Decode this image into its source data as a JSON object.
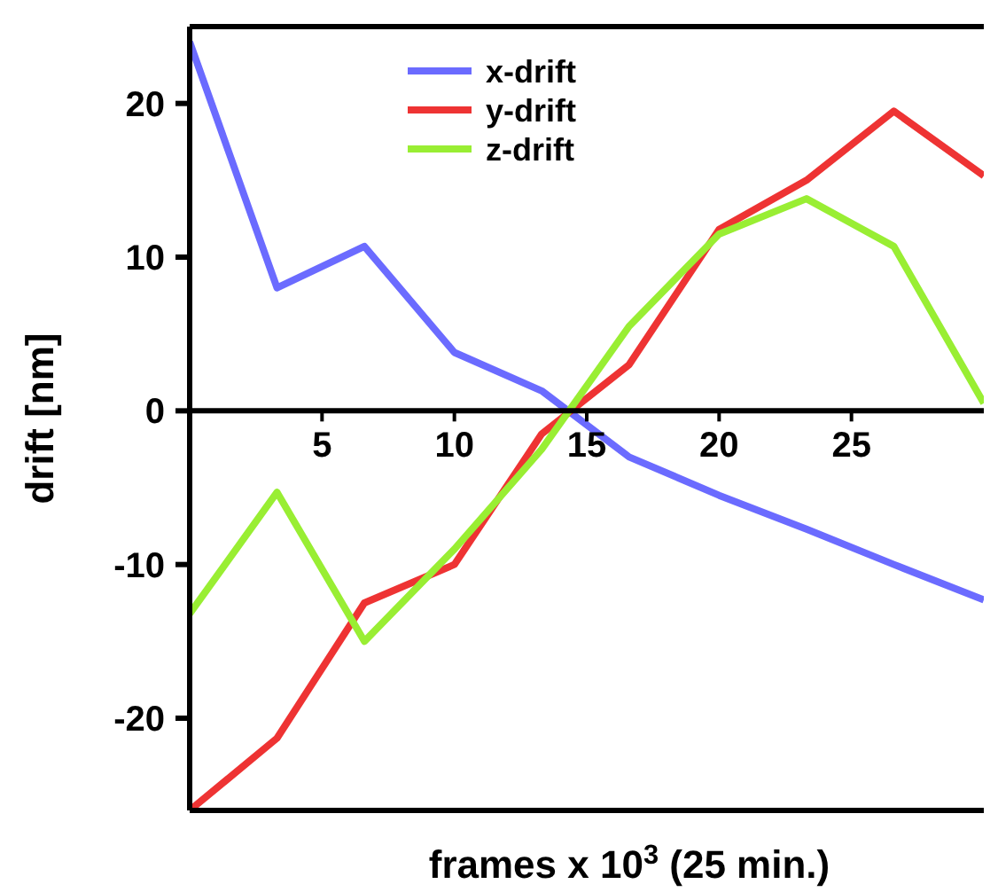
{
  "chart_data": {
    "type": "line",
    "xlabel": "frames x 10$^{3}$ (25 min.)",
    "ylabel": "drift [nm]",
    "xlim": [
      0,
      30
    ],
    "ylim": [
      -26,
      25
    ],
    "xticks": [
      5,
      10,
      15,
      20,
      25
    ],
    "yticks": [
      -20,
      -10,
      0,
      10,
      20
    ],
    "grid": false,
    "legend": "top",
    "line_style": "solid",
    "marker": "none",
    "series": [
      {
        "name": "x-drift",
        "color": "#6b6bff",
        "x": [
          0,
          3.3,
          6.6,
          10,
          13.3,
          16.6,
          20,
          23.3,
          26.6,
          30
        ],
        "values": [
          24,
          8,
          10.7,
          3.8,
          1.3,
          -3,
          -5.5,
          -7.7,
          -10,
          -12.3
        ]
      },
      {
        "name": "y-drift",
        "color": "#ee3333",
        "x": [
          0,
          3.3,
          6.6,
          10,
          13.3,
          16.6,
          20,
          23.3,
          26.6,
          30
        ],
        "values": [
          -26,
          -21.3,
          -12.5,
          -10,
          -1.5,
          3,
          11.8,
          15,
          19.5,
          15.3
        ]
      },
      {
        "name": "z-drift",
        "color": "#99ee33",
        "x": [
          0,
          3.3,
          6.6,
          10,
          13.3,
          16.6,
          20,
          23.3,
          26.6,
          30
        ],
        "values": [
          -13.2,
          -5.3,
          -15,
          -9,
          -2.5,
          5.5,
          11.5,
          13.8,
          10.7,
          0.5
        ]
      }
    ]
  }
}
